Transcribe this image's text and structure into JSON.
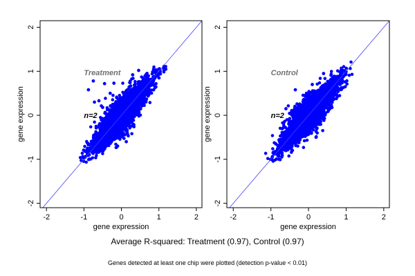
{
  "chart_data": [
    {
      "type": "scatter",
      "title": "Treatment",
      "annotation": "n=2",
      "xlabel": "gene expression",
      "ylabel": "gene expression",
      "xlim": [
        -2.17,
        2.15
      ],
      "ylim": [
        -2.1,
        2.15
      ],
      "xticks": [
        "-2",
        "-1",
        "0",
        "1",
        "2"
      ],
      "yticks": [
        "-2",
        "-1",
        "0",
        "1",
        "2"
      ],
      "reference_line": "y = x",
      "point_color": "#0000ff",
      "line_color": "#4040ff",
      "title_color": "#707070",
      "r_squared": 0.97,
      "outliers": [
        [
          -0.88,
          0.58
        ],
        [
          -0.75,
          0.78
        ],
        [
          -0.72,
          0.3
        ],
        [
          -0.6,
          0.33
        ],
        [
          -0.45,
          0.72
        ],
        [
          -0.2,
          0.73
        ],
        [
          0.13,
          -0.6
        ],
        [
          0.46,
          1.02
        ],
        [
          0.3,
          0.92
        ],
        [
          -0.3,
          0.5
        ],
        [
          0.05,
          -0.4
        ],
        [
          -0.5,
          0.18
        ]
      ]
    },
    {
      "type": "scatter",
      "title": "Control",
      "annotation": "n=2",
      "xlabel": "gene expression",
      "ylabel": "gene expression",
      "xlim": [
        -2.17,
        2.15
      ],
      "ylim": [
        -2.1,
        2.15
      ],
      "xticks": [
        "-2",
        "-1",
        "0",
        "1",
        "2"
      ],
      "yticks": [
        "-2",
        "-1",
        "0",
        "1",
        "2"
      ],
      "reference_line": "y = x",
      "point_color": "#0000ff",
      "line_color": "#4040ff",
      "title_color": "#707070",
      "r_squared": 0.97,
      "outliers": [
        [
          -0.35,
          0.58
        ],
        [
          0.2,
          -0.5
        ],
        [
          -0.6,
          0.15
        ],
        [
          0.4,
          0.95
        ],
        [
          0.1,
          0.7
        ]
      ]
    }
  ],
  "caption": "Average R-squared: Treatment (0.97), Control (0.97)",
  "footnote": "Genes detected at least one chip were plotted (detection p-value < 0.01)"
}
